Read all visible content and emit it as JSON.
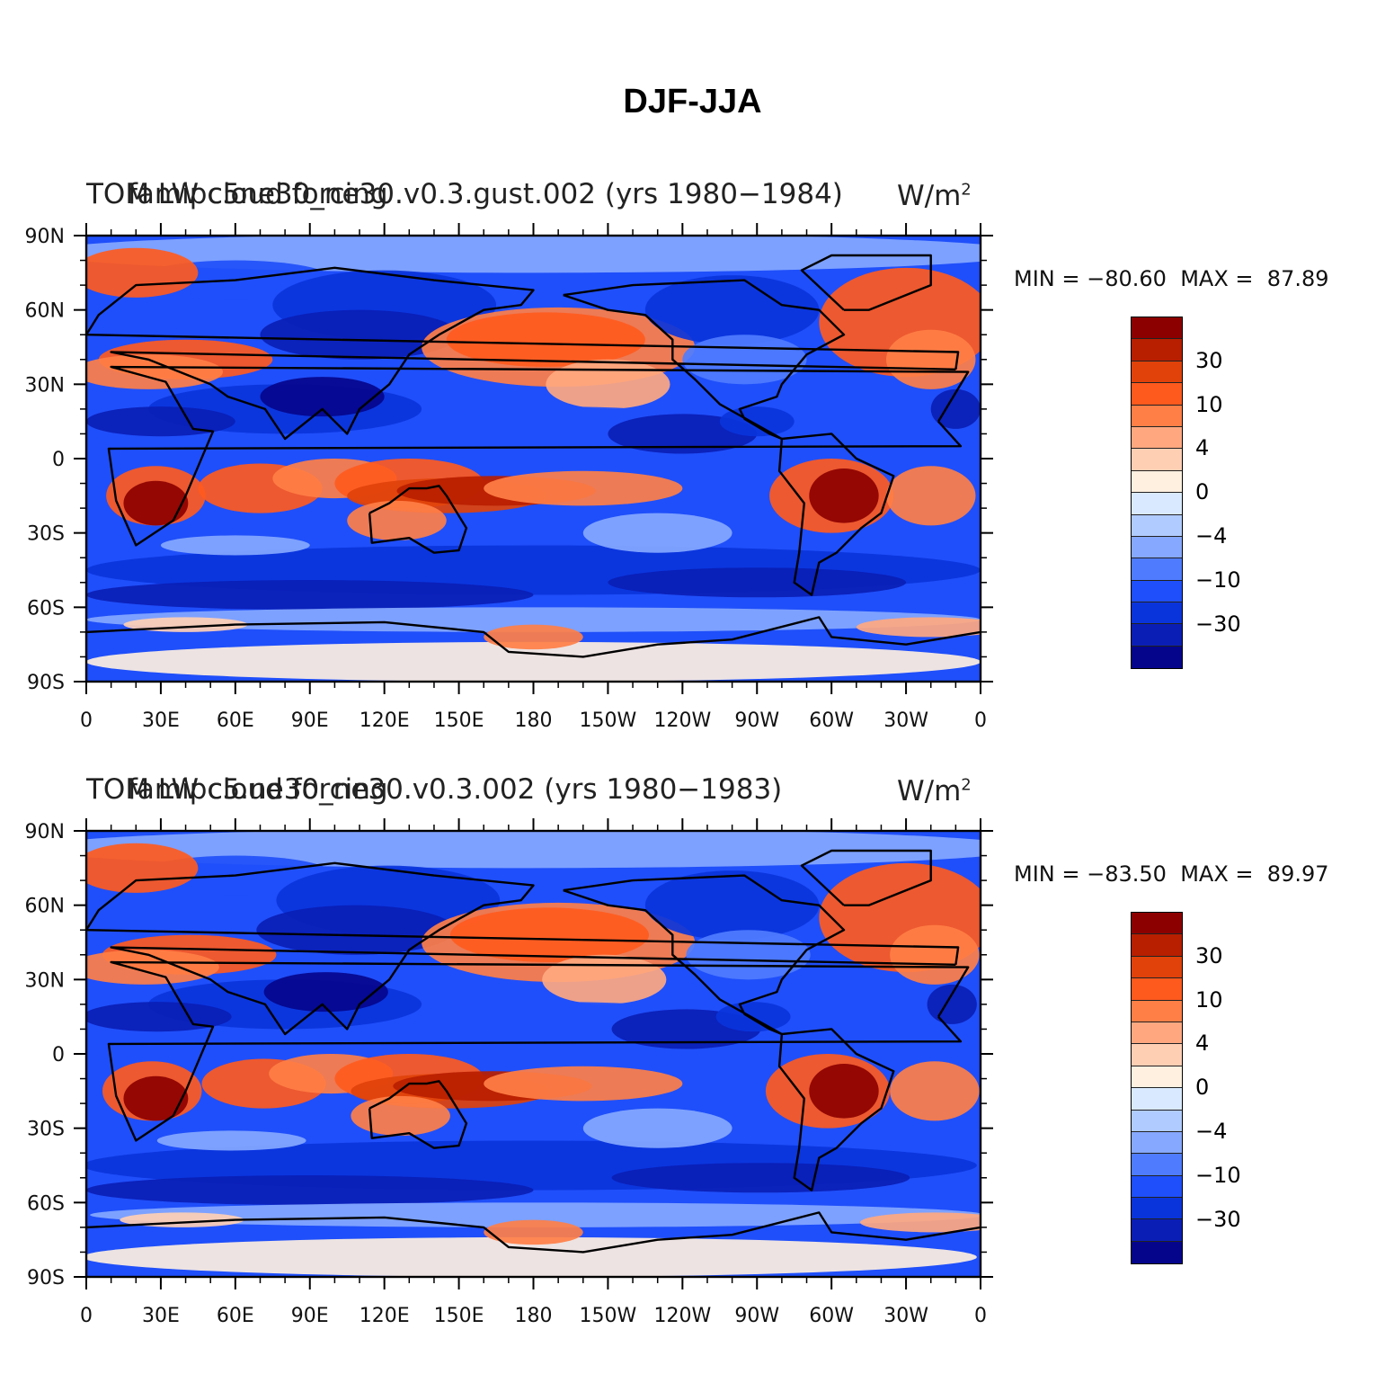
{
  "title": "DJF-JJA",
  "panels": [
    {
      "title_a": "TOM LW cloud forcing",
      "title_b": "famipc5ne30_ne30.v0.3.gust.002 (yrs 1980-1984)",
      "units": "W/m",
      "units_sup": "2",
      "min_label": "MIN =",
      "min": "-80.60",
      "max_label": "MAX =",
      "max": "87.89"
    },
    {
      "title_a": "TOM LW cloud forcing",
      "title_b": "famipc5.ne30_ne30.v0.3.002 (yrs 1980-1983)",
      "units": "W/m",
      "units_sup": "2",
      "min_label": "MIN =",
      "min": "-83.50",
      "max_label": "MAX =",
      "max": "89.97"
    }
  ],
  "axes": {
    "lat_labels": [
      "90N",
      "60N",
      "30N",
      "0",
      "30S",
      "60S",
      "90S"
    ],
    "lon_labels": [
      "0",
      "30E",
      "60E",
      "90E",
      "120E",
      "150E",
      "180",
      "150W",
      "120W",
      "90W",
      "60W",
      "30W",
      "0"
    ]
  },
  "colorbar": {
    "colors": [
      "#8c0000",
      "#b81e00",
      "#e0420a",
      "#ff5a1e",
      "#ff7f46",
      "#ffa880",
      "#ffcfb4",
      "#fff0e0",
      "#d9e9ff",
      "#b0cbff",
      "#86a8ff",
      "#4f7cff",
      "#1f4ffa",
      "#0a34db",
      "#0a1eb5",
      "#05058c"
    ],
    "labels": [
      "30",
      "10",
      "4",
      "0",
      "-4",
      "-10",
      "-30"
    ]
  },
  "colors": {
    "ocean_base": "#1f4ffa",
    "land_outline": "#000000"
  }
}
